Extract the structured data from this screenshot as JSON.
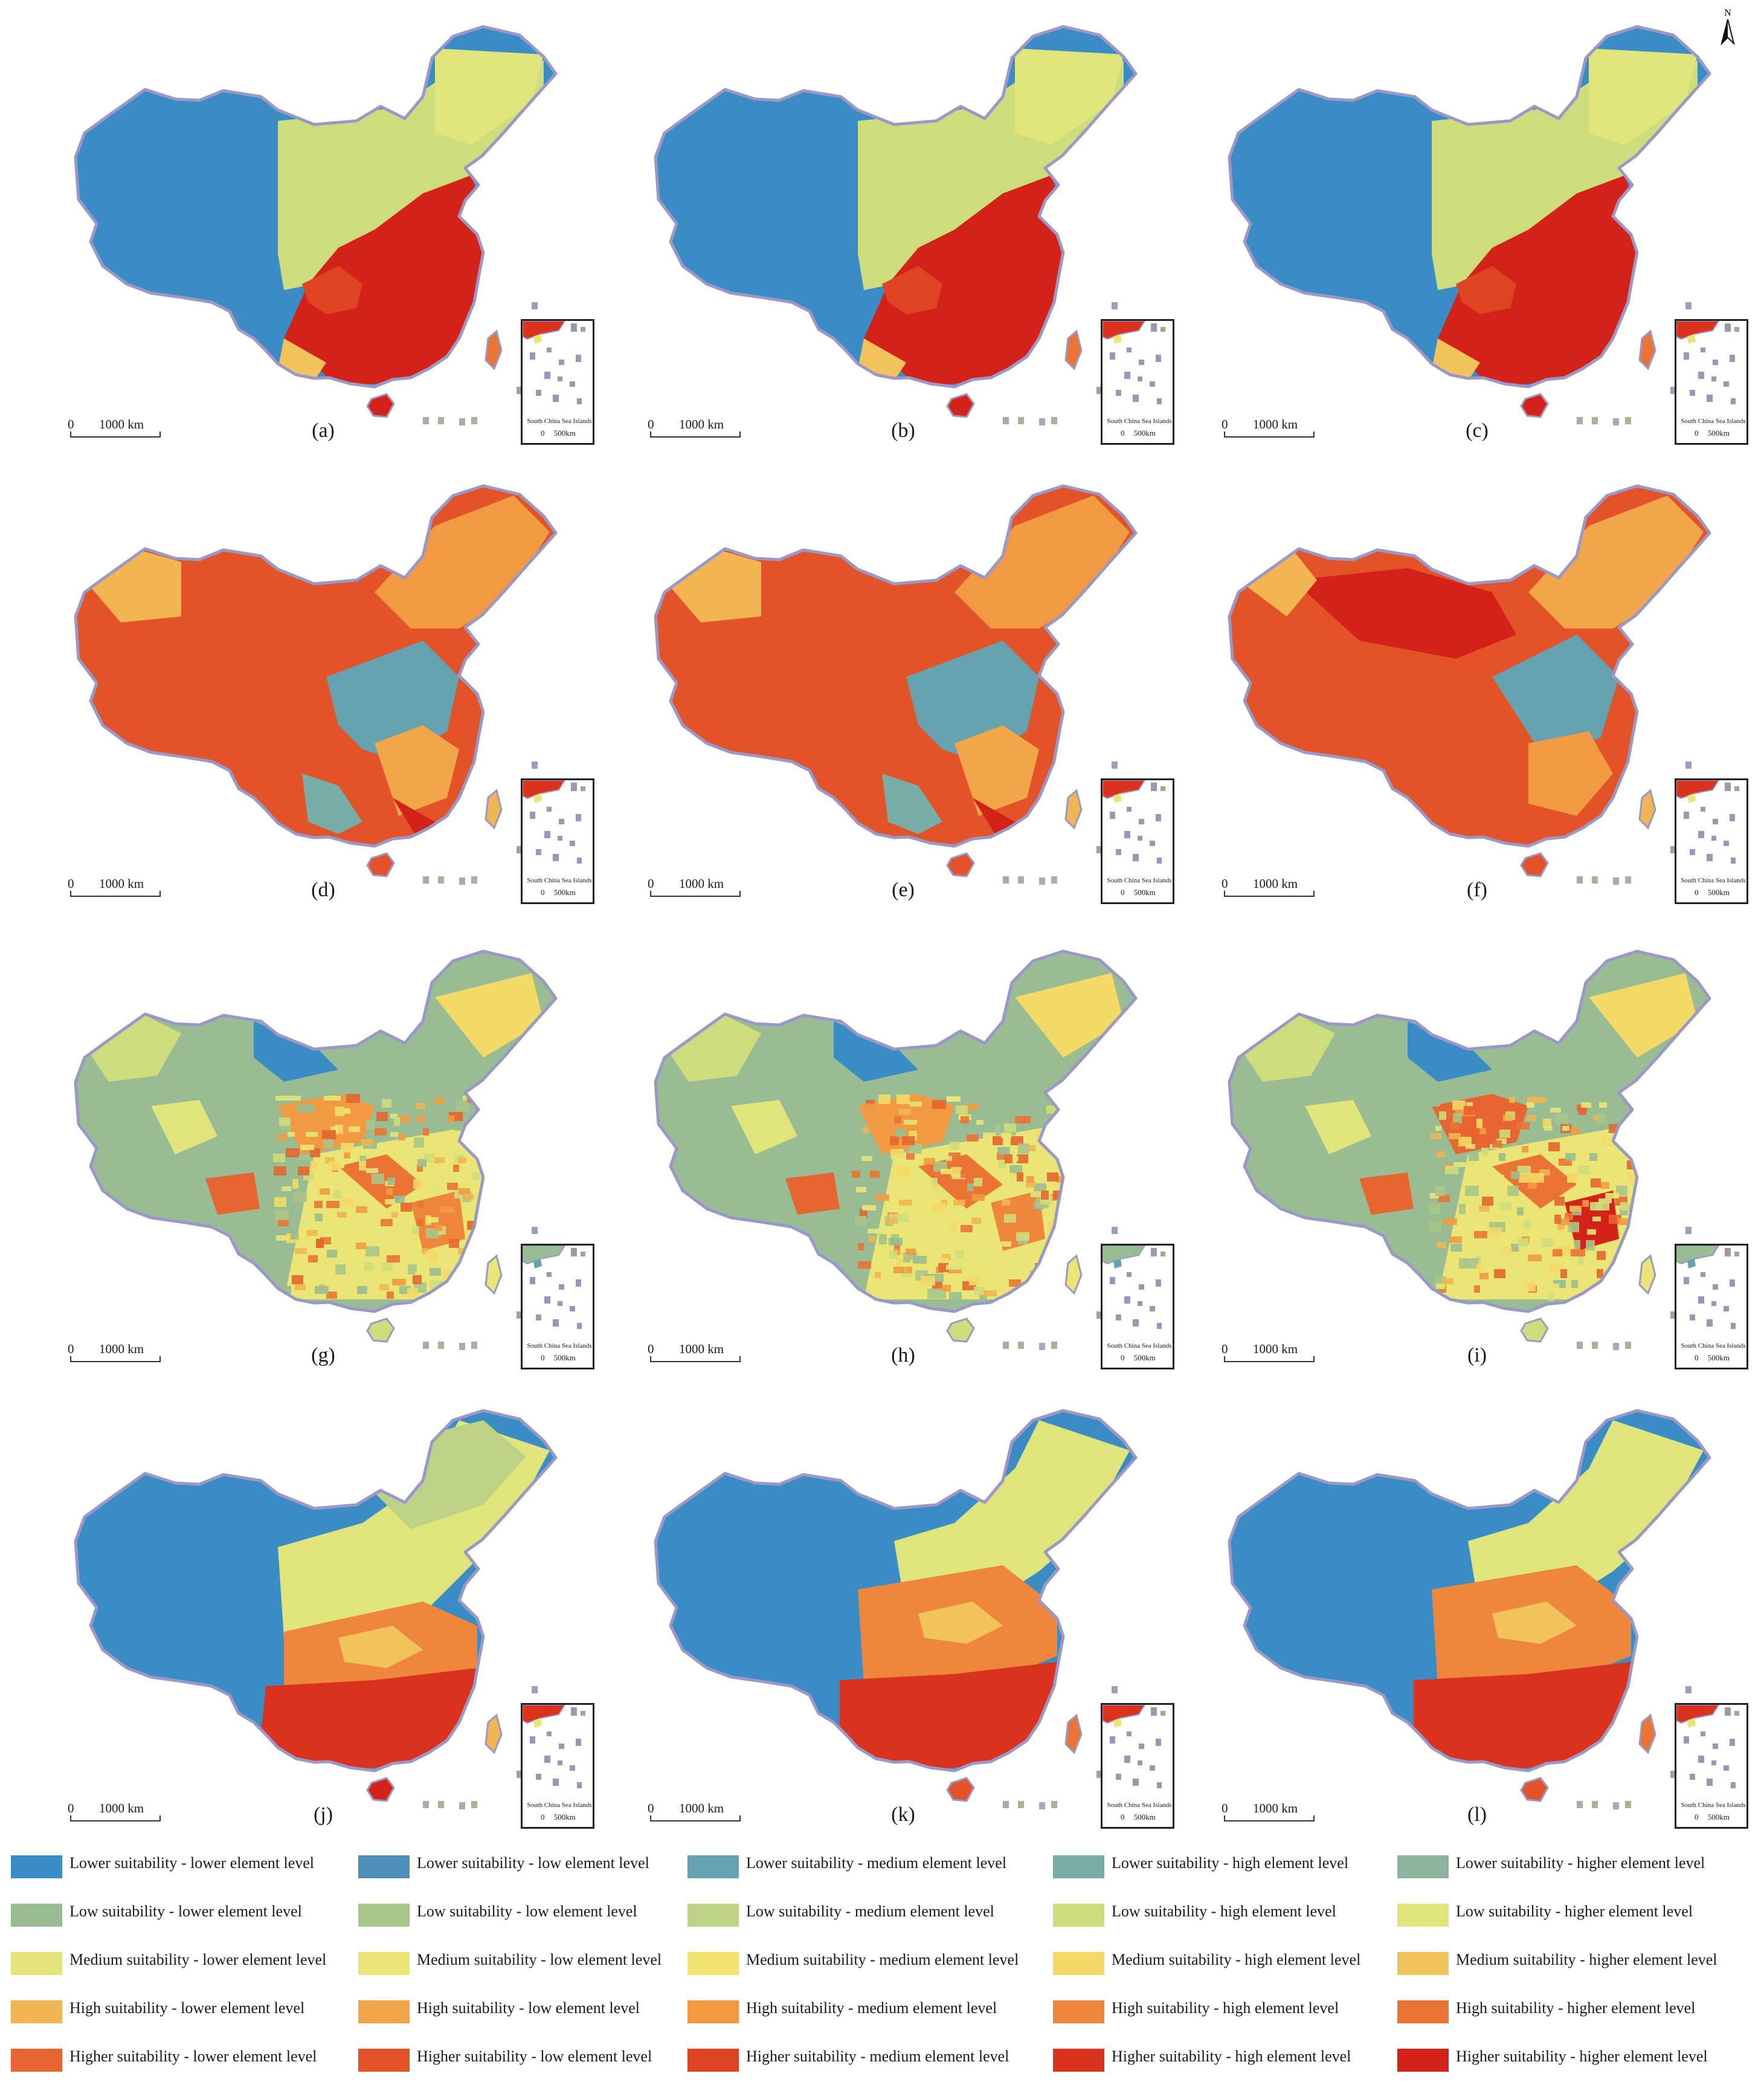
{
  "figure": {
    "panels": [
      {
        "label": "(a)",
        "scheme": "a"
      },
      {
        "label": "(b)",
        "scheme": "a"
      },
      {
        "label": "(c)",
        "scheme": "a"
      },
      {
        "label": "(d)",
        "scheme": "d"
      },
      {
        "label": "(e)",
        "scheme": "d"
      },
      {
        "label": "(f)",
        "scheme": "f"
      },
      {
        "label": "(g)",
        "scheme": "g"
      },
      {
        "label": "(h)",
        "scheme": "g"
      },
      {
        "label": "(i)",
        "scheme": "i"
      },
      {
        "label": "(j)",
        "scheme": "j"
      },
      {
        "label": "(k)",
        "scheme": "k"
      },
      {
        "label": "(l)",
        "scheme": "k"
      }
    ],
    "scale_zero": "0",
    "scale_label": "1000 km",
    "inset_title": "South China Sea Islands",
    "inset_scale_zero": "0",
    "inset_scale_label": "500km",
    "north_label": "N"
  },
  "colors": {
    "province_border": "#9a98c8",
    "lowest_blue": "#3a8cc4",
    "highest_red": "#d52219"
  },
  "legend": [
    {
      "label": "Lower suitability - lower element level",
      "color": "#3a8cc4"
    },
    {
      "label": "Lower suitability - low element level",
      "color": "#4e8fb8"
    },
    {
      "label": "Lower suitability - medium element level",
      "color": "#66a2b0"
    },
    {
      "label": "Lower suitability - high element level",
      "color": "#78ada6"
    },
    {
      "label": "Lower suitability - higher element level",
      "color": "#8cb39e"
    },
    {
      "label": "Low suitability - lower element level",
      "color": "#99bc92"
    },
    {
      "label": "Low suitability - low element level",
      "color": "#a9c588"
    },
    {
      "label": "Low suitability - medium element level",
      "color": "#bdd284"
    },
    {
      "label": "Low suitability - high element level",
      "color": "#cedd7b"
    },
    {
      "label": "Low suitability - higher element level",
      "color": "#dfe57a"
    },
    {
      "label": "Medium suitability - lower element level",
      "color": "#e5e47c"
    },
    {
      "label": "Medium suitability - low element level",
      "color": "#ebe575"
    },
    {
      "label": "Medium suitability - medium element level",
      "color": "#f1e56f"
    },
    {
      "label": "Medium suitability - high element level",
      "color": "#f3d966"
    },
    {
      "label": "Medium suitability - higher element level",
      "color": "#f1c45b"
    },
    {
      "label": "High suitability - lower element level",
      "color": "#f1b552"
    },
    {
      "label": "High suitability - low element level",
      "color": "#f2a649"
    },
    {
      "label": "High suitability - medium element level",
      "color": "#f29a42"
    },
    {
      "label": "High suitability - high element level",
      "color": "#ee873b"
    },
    {
      "label": "High suitability - higher element level",
      "color": "#ea7434"
    },
    {
      "label": "Higher suitability - lower element level",
      "color": "#e66530"
    },
    {
      "label": "Higher suitability - low element level",
      "color": "#e25428"
    },
    {
      "label": "Higher suitability - medium element level",
      "color": "#de4422"
    },
    {
      "label": "Higher suitability - high element level",
      "color": "#da321d"
    },
    {
      "label": "Higher suitability - higher element level",
      "color": "#d52219"
    }
  ]
}
